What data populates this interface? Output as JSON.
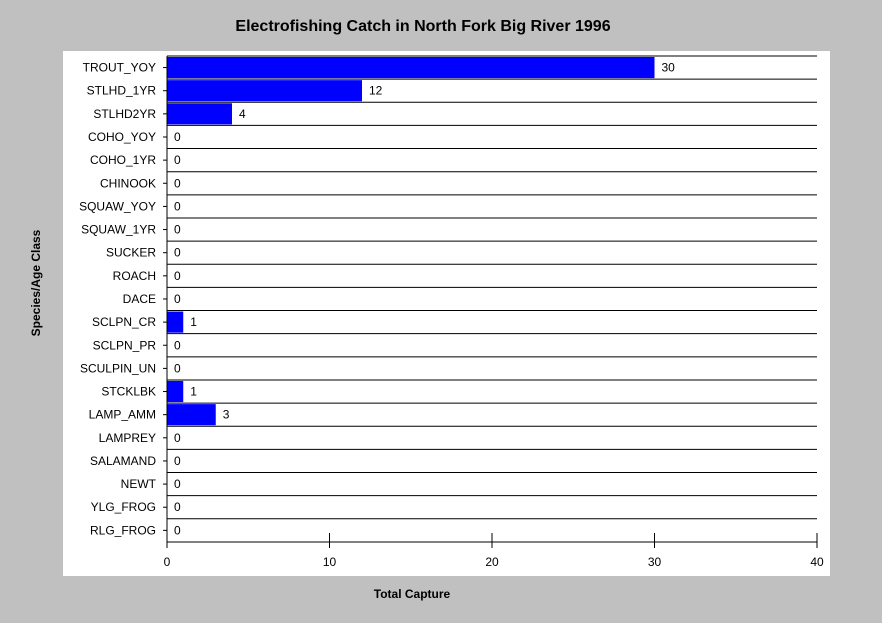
{
  "chart_data": {
    "type": "bar",
    "orientation": "horizontal",
    "title": "Electrofishing Catch in North Fork Big River 1996",
    "xlabel": "Total Capture",
    "ylabel": "Species/Age Class",
    "categories": [
      "TROUT_YOY",
      "STLHD_1YR",
      "STLHD2YR",
      "COHO_YOY",
      "COHO_1YR",
      "CHINOOK",
      "SQUAW_YOY",
      "SQUAW_1YR",
      "SUCKER",
      "ROACH",
      "DACE",
      "SCLPN_CR",
      "SCLPN_PR",
      "SCULPIN_UN",
      "STCKLBK",
      "LAMP_AMM",
      "LAMPREY",
      "SALAMAND",
      "NEWT",
      "YLG_FROG",
      "RLG_FROG"
    ],
    "values": [
      30,
      12,
      4,
      0,
      0,
      0,
      0,
      0,
      0,
      0,
      0,
      1,
      0,
      0,
      1,
      3,
      0,
      0,
      0,
      0,
      0
    ],
    "xlim": [
      0,
      40
    ],
    "xticks": [
      0,
      10,
      20,
      30,
      40
    ],
    "bar_color": "#0000ff",
    "grid": "horizontal row separators"
  }
}
